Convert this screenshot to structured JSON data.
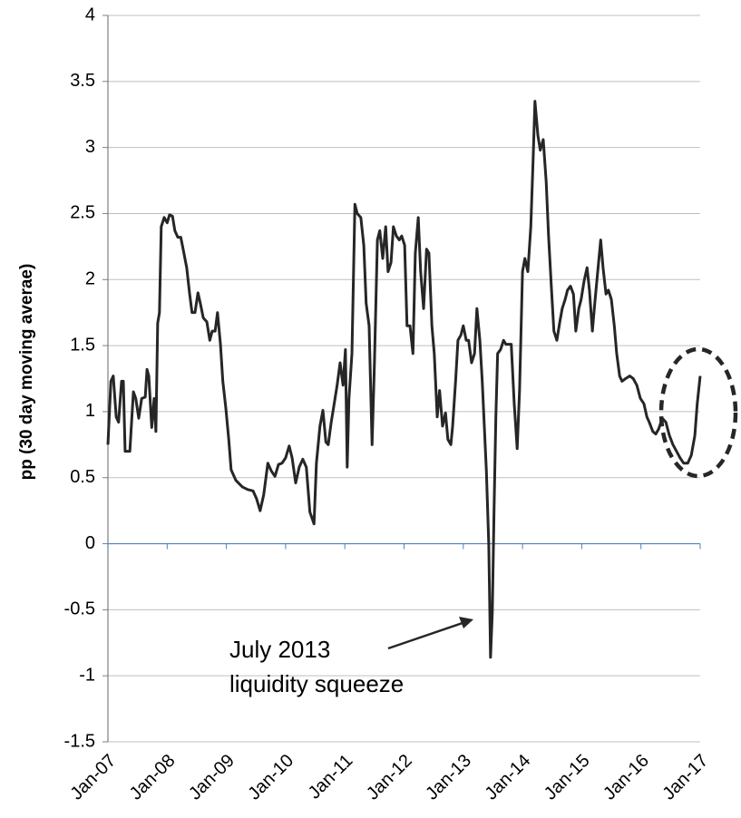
{
  "chart_data": {
    "type": "line",
    "y_label": "pp (30 day moving averae)",
    "annotation": [
      "July 2013",
      "liquidity squeeze"
    ],
    "color": "#262626",
    "grid": true,
    "xlim": [
      2007,
      2017
    ],
    "xticks": [
      {
        "value": 2007,
        "label": "Jan-07"
      },
      {
        "value": 2008,
        "label": "Jan-08"
      },
      {
        "value": 2009,
        "label": "Jan-09"
      },
      {
        "value": 2010,
        "label": "Jan-10"
      },
      {
        "value": 2011,
        "label": "Jan-11"
      },
      {
        "value": 2012,
        "label": "Jan-12"
      },
      {
        "value": 2013,
        "label": "Jan-13"
      },
      {
        "value": 2014,
        "label": "Jan-14"
      },
      {
        "value": 2015,
        "label": "Jan-15"
      },
      {
        "value": 2016,
        "label": "Jan-16"
      },
      {
        "value": 2017,
        "label": "Jan-17"
      }
    ],
    "ylim": [
      -1.5,
      4
    ],
    "yticks": [
      -1.5,
      -1,
      -0.5,
      0,
      0.5,
      1,
      1.5,
      2,
      2.5,
      3,
      3.5,
      4
    ],
    "x": [
      2007.0,
      2007.05,
      2007.09,
      2007.14,
      2007.18,
      2007.23,
      2007.26,
      2007.29,
      2007.37,
      2007.43,
      2007.47,
      2007.52,
      2007.57,
      2007.63,
      2007.66,
      2007.69,
      2007.74,
      2007.78,
      2007.81,
      2007.84,
      2007.87,
      2007.9,
      2007.95,
      2008.0,
      2008.04,
      2008.09,
      2008.13,
      2008.18,
      2008.23,
      2008.27,
      2008.33,
      2008.38,
      2008.42,
      2008.47,
      2008.52,
      2008.56,
      2008.61,
      2008.67,
      2008.72,
      2008.76,
      2008.81,
      2008.85,
      2008.9,
      2008.94,
      2008.99,
      2009.04,
      2009.08,
      2009.16,
      2009.27,
      2009.36,
      2009.45,
      2009.51,
      2009.57,
      2009.63,
      2009.7,
      2009.76,
      2009.82,
      2009.88,
      2009.94,
      2010.0,
      2010.06,
      2010.11,
      2010.17,
      2010.23,
      2010.29,
      2010.35,
      2010.41,
      2010.48,
      2010.52,
      2010.58,
      2010.63,
      2010.68,
      2010.72,
      2010.77,
      2010.81,
      2010.87,
      2010.92,
      2010.97,
      2011.01,
      2011.04,
      2011.07,
      2011.12,
      2011.17,
      2011.21,
      2011.27,
      2011.32,
      2011.36,
      2011.41,
      2011.46,
      2011.5,
      2011.55,
      2011.59,
      2011.64,
      2011.69,
      2011.73,
      2011.78,
      2011.82,
      2011.87,
      2011.92,
      2011.96,
      2012.01,
      2012.05,
      2012.1,
      2012.15,
      2012.19,
      2012.24,
      2012.28,
      2012.33,
      2012.38,
      2012.42,
      2012.47,
      2012.51,
      2012.56,
      2012.6,
      2012.65,
      2012.7,
      2012.74,
      2012.79,
      2012.82,
      2012.87,
      2012.91,
      2012.96,
      2013.0,
      2013.05,
      2013.09,
      2013.14,
      2013.19,
      2013.23,
      2013.28,
      2013.32,
      2013.39,
      2013.43,
      2013.46,
      2013.49,
      2013.52,
      2013.55,
      2013.58,
      2013.63,
      2013.68,
      2013.72,
      2013.77,
      2013.81,
      2013.86,
      2013.91,
      2013.95,
      2014.0,
      2014.04,
      2014.09,
      2014.14,
      2014.18,
      2014.21,
      2014.26,
      2014.3,
      2014.35,
      2014.4,
      2014.44,
      2014.49,
      2014.53,
      2014.58,
      2014.63,
      2014.67,
      2014.72,
      2014.76,
      2014.81,
      2014.86,
      2014.9,
      2014.95,
      2014.99,
      2015.04,
      2015.09,
      2015.13,
      2015.18,
      2015.22,
      2015.27,
      2015.32,
      2015.36,
      2015.41,
      2015.45,
      2015.5,
      2015.55,
      2015.59,
      2015.64,
      2015.68,
      2015.74,
      2015.81,
      2015.87,
      2015.93,
      2015.99,
      2016.05,
      2016.1,
      2016.14,
      2016.2,
      2016.25,
      2016.3,
      2016.36,
      2016.42,
      2016.48,
      2016.54,
      2016.6,
      2016.66,
      2016.72,
      2016.79,
      2016.85,
      2016.91,
      2016.95,
      2017.0
    ],
    "values": [
      0.75,
      1.23,
      1.27,
      0.96,
      0.92,
      1.23,
      1.23,
      0.7,
      0.7,
      1.15,
      1.1,
      0.95,
      1.1,
      1.11,
      1.32,
      1.27,
      0.88,
      1.1,
      0.85,
      1.67,
      1.75,
      2.4,
      2.47,
      2.43,
      2.49,
      2.48,
      2.37,
      2.32,
      2.32,
      2.23,
      2.09,
      1.89,
      1.75,
      1.75,
      1.9,
      1.82,
      1.71,
      1.68,
      1.54,
      1.61,
      1.61,
      1.75,
      1.51,
      1.23,
      1.03,
      0.79,
      0.56,
      0.48,
      0.43,
      0.41,
      0.4,
      0.34,
      0.25,
      0.37,
      0.61,
      0.55,
      0.51,
      0.6,
      0.61,
      0.65,
      0.74,
      0.65,
      0.46,
      0.58,
      0.64,
      0.58,
      0.24,
      0.15,
      0.61,
      0.89,
      1.01,
      0.77,
      0.75,
      0.92,
      1.03,
      1.2,
      1.37,
      1.2,
      1.47,
      0.58,
      1.1,
      1.44,
      2.57,
      2.5,
      2.47,
      2.26,
      1.82,
      1.65,
      0.75,
      1.37,
      2.3,
      2.37,
      2.16,
      2.4,
      2.06,
      2.13,
      2.4,
      2.33,
      2.3,
      2.33,
      2.26,
      1.65,
      1.65,
      1.44,
      2.2,
      2.47,
      2.06,
      1.78,
      2.23,
      2.2,
      1.65,
      1.44,
      0.96,
      1.16,
      0.89,
      0.99,
      0.79,
      0.75,
      0.89,
      1.23,
      1.54,
      1.58,
      1.65,
      1.54,
      1.54,
      1.37,
      1.44,
      1.78,
      1.54,
      1.23,
      0.55,
      0,
      -0.86,
      -0.52,
      0.27,
      0.96,
      1.44,
      1.47,
      1.54,
      1.51,
      1.51,
      1.51,
      1.06,
      0.72,
      1.16,
      2.06,
      2.16,
      2.06,
      2.4,
      2.92,
      3.35,
      3.09,
      2.98,
      3.06,
      2.74,
      2.33,
      1.92,
      1.61,
      1.54,
      1.68,
      1.78,
      1.85,
      1.92,
      1.95,
      1.89,
      1.61,
      1.78,
      1.85,
      1.99,
      2.09,
      1.92,
      1.61,
      1.82,
      2.06,
      2.3,
      2.09,
      1.89,
      1.92,
      1.85,
      1.65,
      1.44,
      1.27,
      1.23,
      1.25,
      1.27,
      1.25,
      1.2,
      1.1,
      1.06,
      0.96,
      0.92,
      0.85,
      0.83,
      0.87,
      0.95,
      0.92,
      0.82,
      0.75,
      0.7,
      0.65,
      0.61,
      0.61,
      0.67,
      0.82,
      1.06,
      1.27
    ]
  }
}
